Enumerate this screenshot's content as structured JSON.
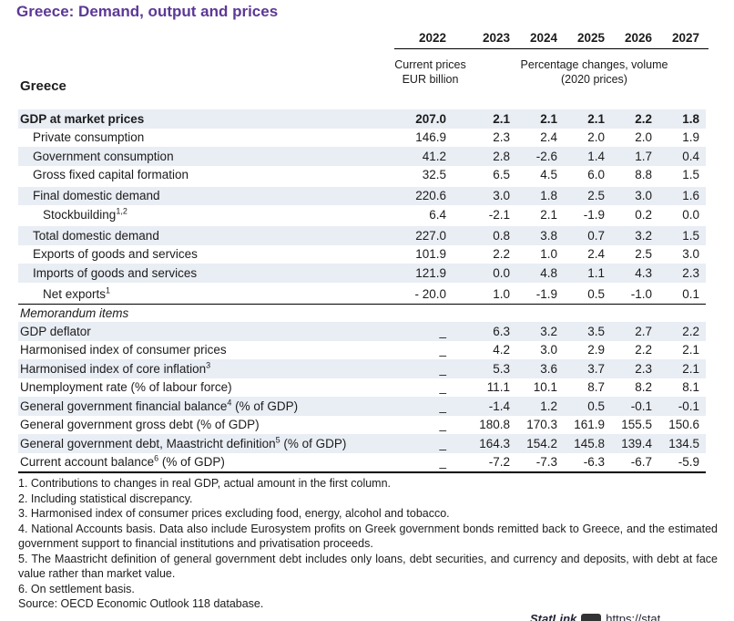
{
  "title": "Greece: Demand, output and prices",
  "country_label": "Greece",
  "colors": {
    "title_purple": "#5c3896",
    "row_shade": "#e9edf4",
    "text": "#1c1c1c"
  },
  "columns": {
    "years": [
      "2022",
      "2023",
      "2024",
      "2025",
      "2026",
      "2027"
    ],
    "col1_header_line1": "Current prices",
    "col1_header_line2": "EUR billion",
    "rest_header_line1": "Percentage changes, volume",
    "rest_header_line2": "(2020 prices)"
  },
  "table": {
    "main_rows": [
      {
        "label": "GDP at market prices",
        "sup": "",
        "suffix": "",
        "indent": 0,
        "bold": true,
        "shaded": true,
        "gap": false,
        "values": [
          "207.0",
          "2.1",
          "2.1",
          "2.1",
          "2.2",
          "1.8"
        ]
      },
      {
        "label": "Private consumption",
        "sup": "",
        "suffix": "",
        "indent": 1,
        "bold": false,
        "shaded": false,
        "gap": false,
        "values": [
          "146.9",
          "2.3",
          "2.4",
          "2.0",
          "2.0",
          "1.9"
        ]
      },
      {
        "label": "Government consumption",
        "sup": "",
        "suffix": "",
        "indent": 1,
        "bold": false,
        "shaded": true,
        "gap": false,
        "values": [
          "41.2",
          "2.8",
          "-2.6",
          "1.4",
          "1.7",
          "0.4"
        ]
      },
      {
        "label": "Gross fixed capital formation",
        "sup": "",
        "suffix": "",
        "indent": 1,
        "bold": false,
        "shaded": false,
        "gap": false,
        "values": [
          "32.5",
          "6.5",
          "4.5",
          "6.0",
          "8.8",
          "1.5"
        ]
      },
      {
        "label": "Final domestic demand",
        "sup": "",
        "suffix": "",
        "indent": 1,
        "bold": false,
        "shaded": true,
        "gap": true,
        "values": [
          "220.6",
          "3.0",
          "1.8",
          "2.5",
          "3.0",
          "1.6"
        ]
      },
      {
        "label": "Stockbuilding",
        "sup": "1,2",
        "suffix": "",
        "indent": 2,
        "bold": false,
        "shaded": false,
        "gap": false,
        "values": [
          "6.4",
          "-2.1",
          "2.1",
          "-1.9",
          "0.2",
          "0.0"
        ]
      },
      {
        "label": "Total domestic demand",
        "sup": "",
        "suffix": "",
        "indent": 1,
        "bold": false,
        "shaded": true,
        "gap": true,
        "values": [
          "227.0",
          "0.8",
          "3.8",
          "0.7",
          "3.2",
          "1.5"
        ]
      },
      {
        "label": "Exports of goods and services",
        "sup": "",
        "suffix": "",
        "indent": 1,
        "bold": false,
        "shaded": false,
        "gap": false,
        "values": [
          "101.9",
          "2.2",
          "1.0",
          "2.4",
          "2.5",
          "3.0"
        ]
      },
      {
        "label": "Imports of goods and services",
        "sup": "",
        "suffix": "",
        "indent": 1,
        "bold": false,
        "shaded": true,
        "gap": false,
        "values": [
          "121.9",
          "0.0",
          "4.8",
          "1.1",
          "4.3",
          "2.3"
        ]
      },
      {
        "label": "Net exports",
        "sup": "1",
        "suffix": "",
        "indent": 2,
        "bold": false,
        "shaded": false,
        "gap": true,
        "values": [
          "- 20.0",
          "1.0",
          "-1.9",
          "0.5",
          "-1.0",
          "0.1"
        ]
      }
    ],
    "memo_header": "Memorandum items",
    "memo_rows": [
      {
        "label": "GDP deflator",
        "sup": "",
        "suffix": "",
        "indent": 0,
        "bold": false,
        "shaded": true,
        "gap": false,
        "values": [
          "_",
          "6.3",
          "3.2",
          "3.5",
          "2.7",
          "2.2"
        ]
      },
      {
        "label": "Harmonised index of consumer prices",
        "sup": "",
        "suffix": "",
        "indent": 0,
        "bold": false,
        "shaded": false,
        "gap": false,
        "values": [
          "_",
          "4.2",
          "3.0",
          "2.9",
          "2.2",
          "2.1"
        ]
      },
      {
        "label": "Harmonised index of core inflation",
        "sup": "3",
        "suffix": "",
        "indent": 0,
        "bold": false,
        "shaded": true,
        "gap": false,
        "values": [
          "_",
          "5.3",
          "3.6",
          "3.7",
          "2.3",
          "2.1"
        ]
      },
      {
        "label": "Unemployment rate (% of labour force)",
        "sup": "",
        "suffix": "",
        "indent": 0,
        "bold": false,
        "shaded": false,
        "gap": false,
        "values": [
          "_",
          "11.1",
          "10.1",
          "8.7",
          "8.2",
          "8.1"
        ]
      },
      {
        "label": "General government financial balance",
        "sup": "4",
        "suffix": " (% of GDP)",
        "indent": 0,
        "bold": false,
        "shaded": true,
        "gap": false,
        "values": [
          "_",
          "-1.4",
          "1.2",
          "0.5",
          "-0.1",
          "-0.1"
        ]
      },
      {
        "label": "General government gross debt (% of GDP)",
        "sup": "",
        "suffix": "",
        "indent": 0,
        "bold": false,
        "shaded": false,
        "gap": false,
        "values": [
          "_",
          "180.8",
          "170.3",
          "161.9",
          "155.5",
          "150.6"
        ]
      },
      {
        "label": "General government debt, Maastricht definition",
        "sup": "5",
        "suffix": " (% of GDP)",
        "indent": 0,
        "bold": false,
        "shaded": true,
        "gap": false,
        "values": [
          "_",
          "164.3",
          "154.2",
          "145.8",
          "139.4",
          "134.5"
        ]
      },
      {
        "label": "Current account balance",
        "sup": "6",
        "suffix": " (% of GDP)",
        "indent": 0,
        "bold": false,
        "shaded": false,
        "gap": false,
        "values": [
          "_",
          "-7.2",
          "-7.3",
          "-6.3",
          "-6.7",
          "-5.9"
        ]
      }
    ]
  },
  "footnotes": [
    "1. Contributions to changes in real GDP, actual amount in the first column.",
    "2. Including statistical discrepancy.",
    "3. Harmonised index of consumer prices excluding food, energy, alcohol and tobacco.",
    "4. National Accounts basis. Data also include Eurosystem profits on Greek government bonds remitted back to Greece, and the estimated government support to financial institutions and privatisation proceeds.",
    "5. The Maastricht definition of general government debt includes only loans, debt securities, and currency and deposits, with debt at face value rather than market value.",
    "6. On settlement basis."
  ],
  "source": "Source: OECD Economic Outlook 118 database.",
  "statlink": {
    "label": "StatLink",
    "url_text": "https://stat"
  }
}
